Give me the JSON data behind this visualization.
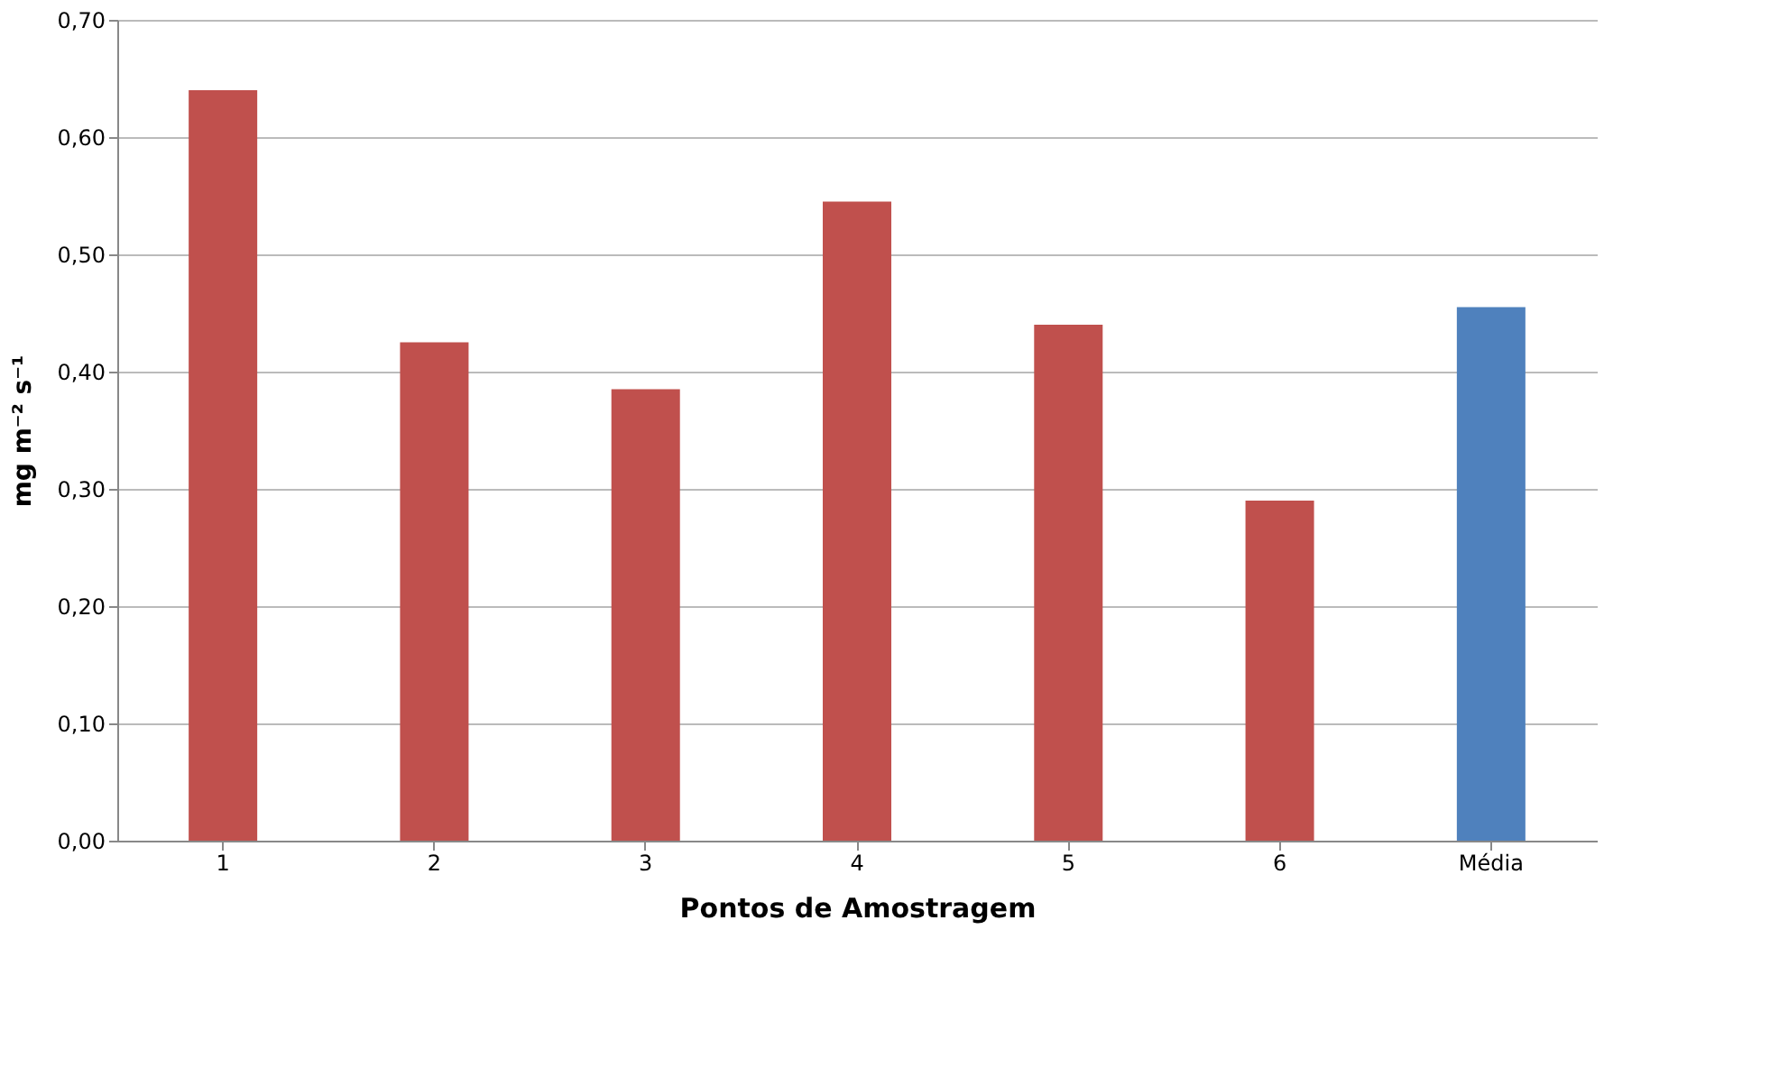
{
  "chart_data": {
    "type": "bar",
    "xlabel": "Pontos de Amostragem",
    "ylabel": "mg m⁻² s⁻¹",
    "categories": [
      "1",
      "2",
      "3",
      "4",
      "5",
      "6",
      "Média"
    ],
    "values": [
      0.64,
      0.425,
      0.385,
      0.545,
      0.44,
      0.29,
      0.455
    ],
    "colors": [
      "#c0504d",
      "#c0504d",
      "#c0504d",
      "#c0504d",
      "#c0504d",
      "#c0504d",
      "#4f81bd"
    ],
    "ylim": [
      0,
      0.7
    ],
    "yticks": [
      {
        "value": 0,
        "label": "0,00"
      },
      {
        "value": 0.1,
        "label": "0,10"
      },
      {
        "value": 0.2,
        "label": "0,20"
      },
      {
        "value": 0.3,
        "label": "0,30"
      },
      {
        "value": 0.4,
        "label": "0,40"
      },
      {
        "value": 0.5,
        "label": "0,50"
      },
      {
        "value": 0.6,
        "label": "0,60"
      },
      {
        "value": 0.7,
        "label": "0,70"
      }
    ],
    "grid": "y",
    "legend": false
  }
}
